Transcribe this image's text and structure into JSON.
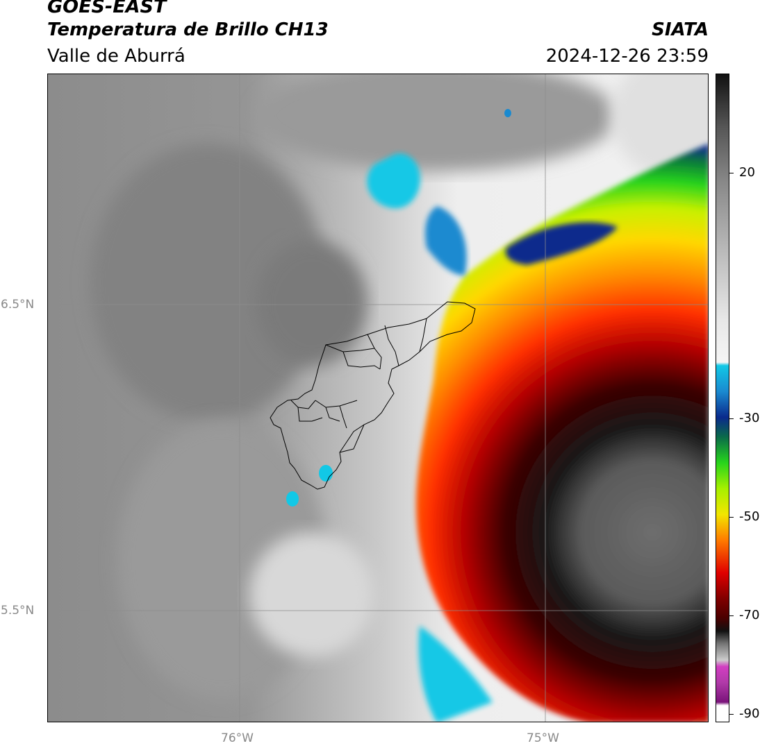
{
  "header": {
    "satellite": "GOES-EAST",
    "product": "Temperatura de Brillo CH13",
    "region": "Valle de Aburrá",
    "agency": "SIATA",
    "timestamp": "2024-12-26 23:59"
  },
  "map": {
    "lat_labels": [
      "6.5°N",
      "5.5°N"
    ],
    "lon_labels": [
      "76°W",
      "75°W"
    ],
    "grid": true,
    "overlay": "municipal boundaries outline"
  },
  "colorbar": {
    "tick_labels": [
      "20",
      "-30",
      "-50",
      "-70",
      "-90"
    ],
    "colors": {
      "warm": "#111111",
      "gray": "#8a8a8a",
      "light": "#e8e8e8",
      "cyan": "#12c8e6",
      "blue": "#0a2a8c",
      "green": "#27d41c",
      "yellow": "#f2e600",
      "orange": "#ff7a00",
      "red": "#e00000",
      "darkred": "#4a0000",
      "magenta": "#d23ec2",
      "purple": "#7a137a"
    }
  }
}
